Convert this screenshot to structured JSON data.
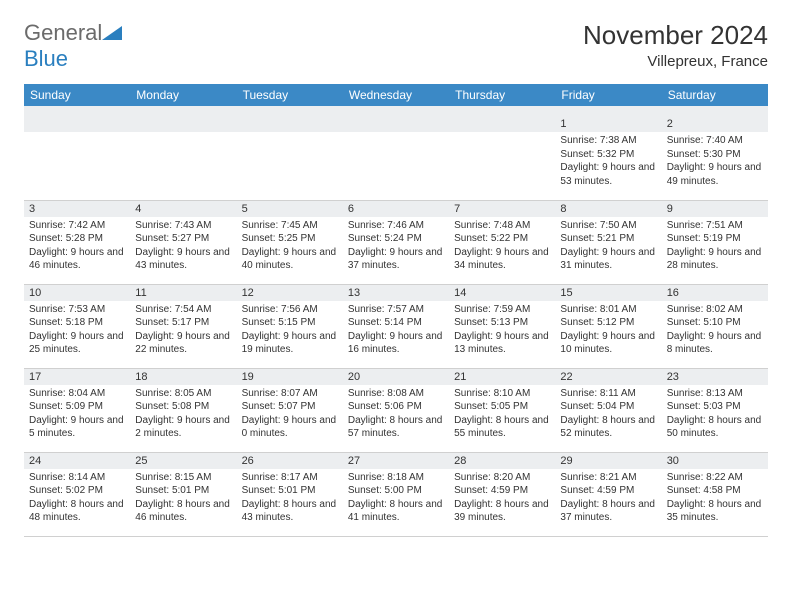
{
  "brand": {
    "part1": "General",
    "part2": "Blue"
  },
  "title": "November 2024",
  "location": "Villepreux, France",
  "style": {
    "header_bg": "#3b89c6",
    "header_fg": "#ffffff",
    "daynum_bg": "#eceef0",
    "text_color": "#333333",
    "border_color": "#d0d0d0",
    "logo_grey": "#6b6b6b",
    "logo_blue": "#2a7fbf",
    "title_fontsize": 26,
    "location_fontsize": 15,
    "th_fontsize": 12,
    "cell_fontsize": 10
  },
  "columns": [
    "Sunday",
    "Monday",
    "Tuesday",
    "Wednesday",
    "Thursday",
    "Friday",
    "Saturday"
  ],
  "weeks": [
    [
      null,
      null,
      null,
      null,
      null,
      {
        "day": "1",
        "sunrise": "7:38 AM",
        "sunset": "5:32 PM",
        "daylight": "9 hours and 53 minutes."
      },
      {
        "day": "2",
        "sunrise": "7:40 AM",
        "sunset": "5:30 PM",
        "daylight": "9 hours and 49 minutes."
      }
    ],
    [
      {
        "day": "3",
        "sunrise": "7:42 AM",
        "sunset": "5:28 PM",
        "daylight": "9 hours and 46 minutes."
      },
      {
        "day": "4",
        "sunrise": "7:43 AM",
        "sunset": "5:27 PM",
        "daylight": "9 hours and 43 minutes."
      },
      {
        "day": "5",
        "sunrise": "7:45 AM",
        "sunset": "5:25 PM",
        "daylight": "9 hours and 40 minutes."
      },
      {
        "day": "6",
        "sunrise": "7:46 AM",
        "sunset": "5:24 PM",
        "daylight": "9 hours and 37 minutes."
      },
      {
        "day": "7",
        "sunrise": "7:48 AM",
        "sunset": "5:22 PM",
        "daylight": "9 hours and 34 minutes."
      },
      {
        "day": "8",
        "sunrise": "7:50 AM",
        "sunset": "5:21 PM",
        "daylight": "9 hours and 31 minutes."
      },
      {
        "day": "9",
        "sunrise": "7:51 AM",
        "sunset": "5:19 PM",
        "daylight": "9 hours and 28 minutes."
      }
    ],
    [
      {
        "day": "10",
        "sunrise": "7:53 AM",
        "sunset": "5:18 PM",
        "daylight": "9 hours and 25 minutes."
      },
      {
        "day": "11",
        "sunrise": "7:54 AM",
        "sunset": "5:17 PM",
        "daylight": "9 hours and 22 minutes."
      },
      {
        "day": "12",
        "sunrise": "7:56 AM",
        "sunset": "5:15 PM",
        "daylight": "9 hours and 19 minutes."
      },
      {
        "day": "13",
        "sunrise": "7:57 AM",
        "sunset": "5:14 PM",
        "daylight": "9 hours and 16 minutes."
      },
      {
        "day": "14",
        "sunrise": "7:59 AM",
        "sunset": "5:13 PM",
        "daylight": "9 hours and 13 minutes."
      },
      {
        "day": "15",
        "sunrise": "8:01 AM",
        "sunset": "5:12 PM",
        "daylight": "9 hours and 10 minutes."
      },
      {
        "day": "16",
        "sunrise": "8:02 AM",
        "sunset": "5:10 PM",
        "daylight": "9 hours and 8 minutes."
      }
    ],
    [
      {
        "day": "17",
        "sunrise": "8:04 AM",
        "sunset": "5:09 PM",
        "daylight": "9 hours and 5 minutes."
      },
      {
        "day": "18",
        "sunrise": "8:05 AM",
        "sunset": "5:08 PM",
        "daylight": "9 hours and 2 minutes."
      },
      {
        "day": "19",
        "sunrise": "8:07 AM",
        "sunset": "5:07 PM",
        "daylight": "9 hours and 0 minutes."
      },
      {
        "day": "20",
        "sunrise": "8:08 AM",
        "sunset": "5:06 PM",
        "daylight": "8 hours and 57 minutes."
      },
      {
        "day": "21",
        "sunrise": "8:10 AM",
        "sunset": "5:05 PM",
        "daylight": "8 hours and 55 minutes."
      },
      {
        "day": "22",
        "sunrise": "8:11 AM",
        "sunset": "5:04 PM",
        "daylight": "8 hours and 52 minutes."
      },
      {
        "day": "23",
        "sunrise": "8:13 AM",
        "sunset": "5:03 PM",
        "daylight": "8 hours and 50 minutes."
      }
    ],
    [
      {
        "day": "24",
        "sunrise": "8:14 AM",
        "sunset": "5:02 PM",
        "daylight": "8 hours and 48 minutes."
      },
      {
        "day": "25",
        "sunrise": "8:15 AM",
        "sunset": "5:01 PM",
        "daylight": "8 hours and 46 minutes."
      },
      {
        "day": "26",
        "sunrise": "8:17 AM",
        "sunset": "5:01 PM",
        "daylight": "8 hours and 43 minutes."
      },
      {
        "day": "27",
        "sunrise": "8:18 AM",
        "sunset": "5:00 PM",
        "daylight": "8 hours and 41 minutes."
      },
      {
        "day": "28",
        "sunrise": "8:20 AM",
        "sunset": "4:59 PM",
        "daylight": "8 hours and 39 minutes."
      },
      {
        "day": "29",
        "sunrise": "8:21 AM",
        "sunset": "4:59 PM",
        "daylight": "8 hours and 37 minutes."
      },
      {
        "day": "30",
        "sunrise": "8:22 AM",
        "sunset": "4:58 PM",
        "daylight": "8 hours and 35 minutes."
      }
    ]
  ],
  "labels": {
    "sunrise": "Sunrise: ",
    "sunset": "Sunset: ",
    "daylight": "Daylight: "
  }
}
